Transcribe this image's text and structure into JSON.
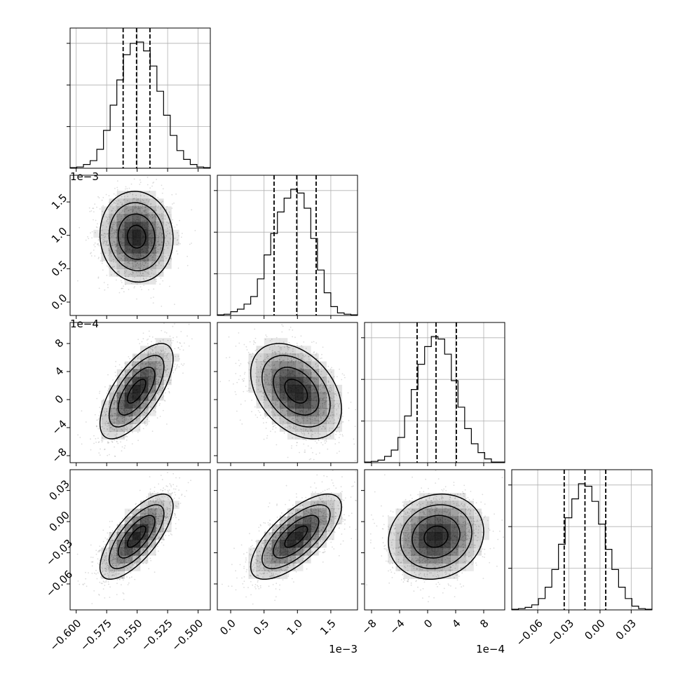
{
  "chart_data": {
    "type": "corner",
    "title": "",
    "params": [
      {
        "range": [
          -0.605,
          -0.49
        ],
        "ticks": [
          -0.6,
          -0.575,
          -0.55,
          -0.525,
          -0.5
        ],
        "tick_labels": [
          "−0.600",
          "−0.575",
          "−0.550",
          "−0.525",
          "−0.500"
        ],
        "offset": "",
        "quantiles": [
          -0.5615,
          -0.5505,
          -0.5395
        ]
      },
      {
        "range": [
          -0.0002,
          0.0019
        ],
        "ticks": [
          0.0,
          0.0005,
          0.001,
          0.0015
        ],
        "tick_labels": [
          "0.0",
          "0.5",
          "1.0",
          "1.5"
        ],
        "offset": "1e−3",
        "quantiles": [
          0.00065,
          0.00099,
          0.00128
        ]
      },
      {
        "range": [
          -9e-05,
          0.00011
        ],
        "ticks": [
          -8e-05,
          -4e-05,
          0.0,
          4e-05,
          8e-05
        ],
        "tick_labels": [
          "−8",
          "−4",
          "0",
          "4",
          "8"
        ],
        "offset": "1e−4",
        "quantiles": [
          -1.5e-05,
          1.2e-05,
          4.1e-05
        ]
      },
      {
        "range": [
          -0.085,
          0.05
        ],
        "ticks": [
          -0.06,
          -0.03,
          0.0,
          0.03
        ],
        "tick_labels": [
          "−0.06",
          "−0.03",
          "0.00",
          "0.03"
        ],
        "offset": "",
        "quantiles": [
          -0.0345,
          -0.0145,
          0.0055
        ]
      }
    ],
    "histograms": [
      [
        0.5,
        1,
        3,
        6,
        15,
        30,
        50,
        70,
        90,
        99,
        100,
        93,
        81,
        61,
        42,
        26,
        14,
        7,
        3,
        1,
        0.5
      ],
      [
        0.5,
        1,
        3,
        5,
        9,
        15,
        29,
        48,
        65,
        82,
        93,
        100,
        97,
        85,
        61,
        36,
        18,
        7,
        2,
        1,
        0.5
      ],
      [
        0.5,
        1,
        2,
        5,
        10,
        20,
        37,
        58,
        78,
        92,
        100,
        98,
        86,
        65,
        44,
        27,
        15,
        8,
        3,
        0.5,
        0.5
      ],
      [
        0.5,
        1,
        2,
        4,
        9,
        18,
        32,
        52,
        73,
        88,
        100,
        98,
        86,
        68,
        48,
        32,
        18,
        9,
        3,
        1,
        0.5
      ]
    ],
    "pairs": [
      {
        "row": 1,
        "col": 0,
        "mean": [
          -0.5505,
          0.00098
        ],
        "sd": [
          0.015,
          0.00034
        ],
        "rho": -0.05
      },
      {
        "row": 2,
        "col": 0,
        "mean": [
          -0.5505,
          1.2e-05
        ],
        "sd": [
          0.015,
          3.4e-05
        ],
        "rho": 0.68
      },
      {
        "row": 2,
        "col": 1,
        "mean": [
          0.00098,
          1.2e-05
        ],
        "sd": [
          0.00034,
          3.4e-05
        ],
        "rho": -0.38
      },
      {
        "row": 3,
        "col": 0,
        "mean": [
          -0.5505,
          -0.0145
        ],
        "sd": [
          0.015,
          0.0205
        ],
        "rho": 0.72
      },
      {
        "row": 3,
        "col": 1,
        "mean": [
          0.00098,
          -0.0145
        ],
        "sd": [
          0.00034,
          0.0205
        ],
        "rho": 0.7
      },
      {
        "row": 3,
        "col": 2,
        "mean": [
          1.2e-05,
          -0.0145
        ],
        "sd": [
          3.4e-05,
          0.0205
        ],
        "rho": 0.12
      }
    ],
    "contour_levels": [
      0.5,
      1.0,
      1.5,
      2.0
    ],
    "grid": true,
    "colors": {
      "lines": "#000000",
      "points": "#9a9a9a",
      "grid": "#b0b0b0",
      "density": "#000000"
    }
  }
}
